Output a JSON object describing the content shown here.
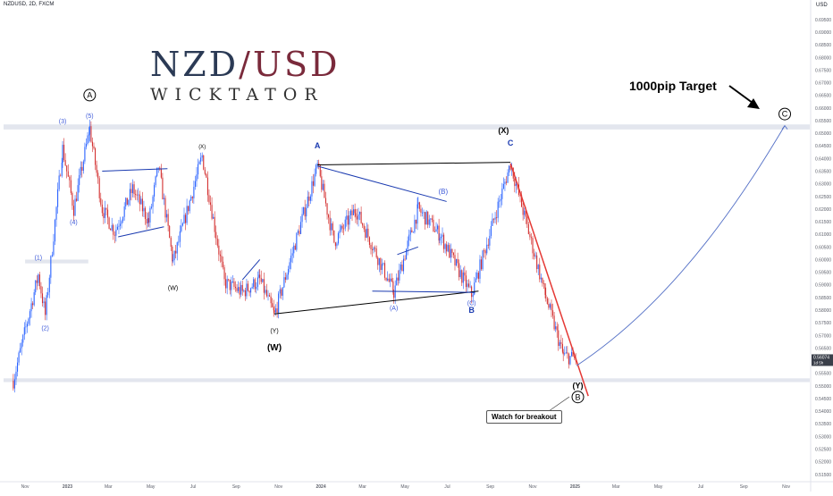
{
  "header": {
    "symbol": "NZDUSD, 2D, FXCM",
    "currency": "USD"
  },
  "brand": {
    "pair_left": "NZD",
    "slash": "/",
    "pair_right": "USD",
    "subtitle": "WICKTATOR"
  },
  "price_tag": {
    "price": "0.56074",
    "countdown": "1d 5h"
  },
  "breakout_label": "Watch for breakout",
  "chart_data": {
    "type": "candlestick",
    "x_axis_labels": [
      "Nov",
      "2023",
      "Mar",
      "May",
      "Jul",
      "Sep",
      "Nov",
      "2024",
      "Mar",
      "May",
      "Jul",
      "Sep",
      "Nov",
      "2025",
      "Mar",
      "May",
      "Jul",
      "Sep",
      "Nov"
    ],
    "y_ticks": [
      "0.69500",
      "0.69000",
      "0.68500",
      "0.68000",
      "0.67500",
      "0.67000",
      "0.66500",
      "0.66000",
      "0.65500",
      "0.65000",
      "0.64500",
      "0.64000",
      "0.63500",
      "0.63000",
      "0.62500",
      "0.62000",
      "0.61500",
      "0.61000",
      "0.60500",
      "0.60000",
      "0.59500",
      "0.59000",
      "0.58500",
      "0.58000",
      "0.57500",
      "0.57000",
      "0.56500",
      "0.56000",
      "0.55500",
      "0.55000",
      "0.54500",
      "0.54000",
      "0.53500",
      "0.53000",
      "0.52500",
      "0.52000",
      "0.51500"
    ],
    "ylim": [
      0.5135,
      0.6985
    ],
    "colors": {
      "up": "#2962ff",
      "down": "#d32f2f",
      "zone": "#e3e6ee",
      "target_curve": "#5470c6",
      "trendline": "#1a237e"
    },
    "pivots": [
      {
        "date": "2022-10-15",
        "price": 0.552
      },
      {
        "date": "2022-11-20",
        "price": 0.594
      },
      {
        "date": "2022-11-30",
        "price": 0.578
      },
      {
        "date": "2022-12-25",
        "price": 0.644
      },
      {
        "date": "2023-01-10",
        "price": 0.62
      },
      {
        "date": "2023-02-02",
        "price": 0.652
      },
      {
        "date": "2023-02-20",
        "price": 0.62
      },
      {
        "date": "2023-03-10",
        "price": 0.611
      },
      {
        "date": "2023-04-05",
        "price": 0.628
      },
      {
        "date": "2023-04-28",
        "price": 0.615
      },
      {
        "date": "2023-05-12",
        "price": 0.637
      },
      {
        "date": "2023-06-02",
        "price": 0.599
      },
      {
        "date": "2023-07-14",
        "price": 0.641
      },
      {
        "date": "2023-08-15",
        "price": 0.591
      },
      {
        "date": "2023-09-10",
        "price": 0.587
      },
      {
        "date": "2023-10-05",
        "price": 0.592
      },
      {
        "date": "2023-10-26",
        "price": 0.578
      },
      {
        "date": "2023-12-27",
        "price": 0.637
      },
      {
        "date": "2024-01-20",
        "price": 0.607
      },
      {
        "date": "2024-02-20",
        "price": 0.62
      },
      {
        "date": "2024-04-15",
        "price": 0.587
      },
      {
        "date": "2024-05-20",
        "price": 0.62
      },
      {
        "date": "2024-06-20",
        "price": 0.61
      },
      {
        "date": "2024-08-05",
        "price": 0.586
      },
      {
        "date": "2024-09-30",
        "price": 0.638
      },
      {
        "date": "2024-11-20",
        "price": 0.585
      },
      {
        "date": "2024-12-15",
        "price": 0.562
      },
      {
        "date": "2025-01-03",
        "price": 0.5607
      }
    ],
    "projection": [
      {
        "date": "2025-01-03",
        "price": 0.558
      },
      {
        "date": "2025-06-01",
        "price": 0.585
      },
      {
        "date": "2025-09-10",
        "price": 0.63
      },
      {
        "date": "2025-10-30",
        "price": 0.653
      }
    ],
    "zones": [
      {
        "price_from": 0.6515,
        "price_to": 0.6535
      },
      {
        "price_from": 0.5515,
        "price_to": 0.553
      }
    ],
    "minor_zone": {
      "start": "2022-11-01",
      "end": "2023-01-31",
      "price_from": 0.5985,
      "price_to": 0.6
    },
    "trendlines": [
      {
        "color": "#000000",
        "width": 1,
        "points": [
          [
            "2023-10-26",
            0.5785
          ],
          [
            "2024-08-15",
            0.5875
          ]
        ]
      },
      {
        "color": "#000000",
        "width": 1,
        "points": [
          [
            "2023-12-27",
            0.6375
          ],
          [
            "2024-09-30",
            0.6385
          ]
        ]
      },
      {
        "color": "#1a3ab0",
        "width": 1,
        "points": [
          [
            "2023-12-27",
            0.637
          ],
          [
            "2024-06-30",
            0.623
          ]
        ]
      },
      {
        "color": "#1a3ab0",
        "width": 1,
        "points": [
          [
            "2024-03-15",
            0.5875
          ],
          [
            "2024-08-10",
            0.587
          ]
        ]
      },
      {
        "color": "#e53935",
        "width": 1.5,
        "points": [
          [
            "2024-09-30",
            0.638
          ],
          [
            "2025-01-20",
            0.546
          ]
        ]
      },
      {
        "color": "#1a3ab0",
        "width": 1,
        "points": [
          [
            "2023-02-20",
            0.635
          ],
          [
            "2023-05-25",
            0.636
          ]
        ]
      },
      {
        "color": "#1a3ab0",
        "width": 1,
        "points": [
          [
            "2023-03-15",
            0.609
          ],
          [
            "2023-05-20",
            0.613
          ]
        ]
      },
      {
        "color": "#1a3ab0",
        "width": 1,
        "points": [
          [
            "2023-09-10",
            0.592
          ],
          [
            "2023-10-05",
            0.6
          ]
        ]
      },
      {
        "color": "#1a3ab0",
        "width": 1,
        "points": [
          [
            "2024-04-20",
            0.602
          ],
          [
            "2024-05-20",
            0.605
          ]
        ]
      }
    ],
    "wave_labels": [
      {
        "text": "A",
        "date": "2023-02-02",
        "price": 0.664,
        "color": "#000000",
        "circle": true,
        "size": 9,
        "bold": false
      },
      {
        "text": "(5)",
        "date": "2023-02-02",
        "price": 0.656,
        "color": "#3f5bd9",
        "size": 7
      },
      {
        "text": "(3)",
        "date": "2022-12-25",
        "price": 0.654,
        "color": "#3f5bd9",
        "size": 7
      },
      {
        "text": "(4)",
        "date": "2023-01-10",
        "price": 0.614,
        "color": "#3f5bd9",
        "size": 7
      },
      {
        "text": "(1)",
        "date": "2022-11-20",
        "price": 0.6,
        "color": "#3f5bd9",
        "size": 7
      },
      {
        "text": "(2)",
        "date": "2022-11-30",
        "price": 0.572,
        "color": "#3f5bd9",
        "size": 7
      },
      {
        "text": "(X)",
        "date": "2023-07-14",
        "price": 0.644,
        "color": "#000000",
        "size": 6
      },
      {
        "text": "(W)",
        "date": "2023-06-02",
        "price": 0.588,
        "color": "#000000",
        "size": 7
      },
      {
        "text": "(Y)",
        "date": "2023-10-26",
        "price": 0.571,
        "color": "#000000",
        "size": 7
      },
      {
        "text": "(W)",
        "date": "2023-10-26",
        "price": 0.564,
        "color": "#000000",
        "size": 10,
        "bold": true
      },
      {
        "text": "A",
        "date": "2023-12-27",
        "price": 0.644,
        "color": "#1a3ab0",
        "size": 9,
        "bold": true
      },
      {
        "text": "(B)",
        "date": "2024-06-25",
        "price": 0.626,
        "color": "#3f5bd9",
        "size": 8
      },
      {
        "text": "(A)",
        "date": "2024-04-15",
        "price": 0.58,
        "color": "#3f5bd9",
        "size": 7
      },
      {
        "text": "(C)",
        "date": "2024-08-05",
        "price": 0.582,
        "color": "#3f5bd9",
        "size": 7
      },
      {
        "text": "B",
        "date": "2024-08-05",
        "price": 0.579,
        "color": "#1a3ab0",
        "size": 9,
        "bold": true
      },
      {
        "text": "(X)",
        "date": "2024-09-20",
        "price": 0.65,
        "color": "#000000",
        "size": 9,
        "bold": true
      },
      {
        "text": "C",
        "date": "2024-09-30",
        "price": 0.645,
        "color": "#1a3ab0",
        "size": 9,
        "bold": true
      },
      {
        "text": "(Y)",
        "date": "2025-01-05",
        "price": 0.549,
        "color": "#000000",
        "size": 9,
        "bold": true
      },
      {
        "text": "B",
        "date": "2025-01-05",
        "price": 0.5445,
        "color": "#000000",
        "circle": true,
        "size": 9,
        "bold": false
      },
      {
        "text": "C",
        "date": "2025-10-30",
        "price": 0.6565,
        "color": "#000000",
        "circle": true,
        "size": 9,
        "bold": false
      }
    ],
    "target_label": "1000pip Target"
  }
}
